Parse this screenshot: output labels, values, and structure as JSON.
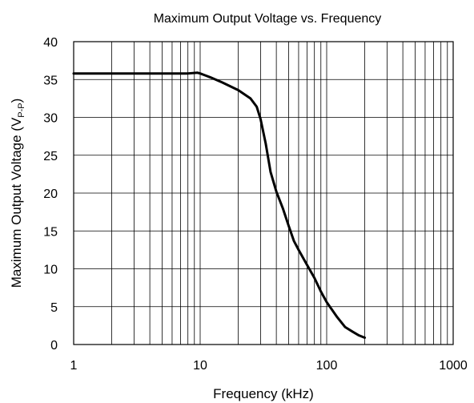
{
  "chart_data": {
    "type": "line",
    "title": "Maximum Output Voltage vs. Frequency",
    "xlabel": "Frequency (kHz)",
    "ylabel": "Maximum Output Voltage (V",
    "ylabel_subscript": "P-P",
    "ylabel_suffix": ")",
    "x_scale": "log",
    "xlim": [
      1,
      1000
    ],
    "ylim": [
      0,
      40
    ],
    "grid": true,
    "x_ticks": [
      1,
      10,
      100,
      1000
    ],
    "x_tick_labels": [
      "1",
      "10",
      "100",
      "1000"
    ],
    "y_ticks": [
      0,
      5,
      10,
      15,
      20,
      25,
      30,
      35,
      40
    ],
    "y_tick_labels": [
      "0",
      "5",
      "10",
      "15",
      "20",
      "25",
      "30",
      "35",
      "40"
    ],
    "series": [
      {
        "x": [
          1,
          2,
          4,
          8,
          9.5,
          10,
          12,
          15,
          20,
          25,
          28,
          30,
          33,
          36,
          40,
          45,
          50,
          55,
          60,
          70,
          80,
          90,
          100,
          120,
          140,
          160,
          180,
          200
        ],
        "y": [
          35.8,
          35.8,
          35.8,
          35.8,
          35.9,
          35.8,
          35.3,
          34.6,
          33.6,
          32.5,
          31.4,
          29.8,
          26.5,
          22.8,
          20.2,
          18.0,
          15.7,
          13.7,
          12.5,
          10.5,
          8.8,
          7.0,
          5.6,
          3.7,
          2.3,
          1.7,
          1.2,
          0.9
        ]
      }
    ]
  }
}
